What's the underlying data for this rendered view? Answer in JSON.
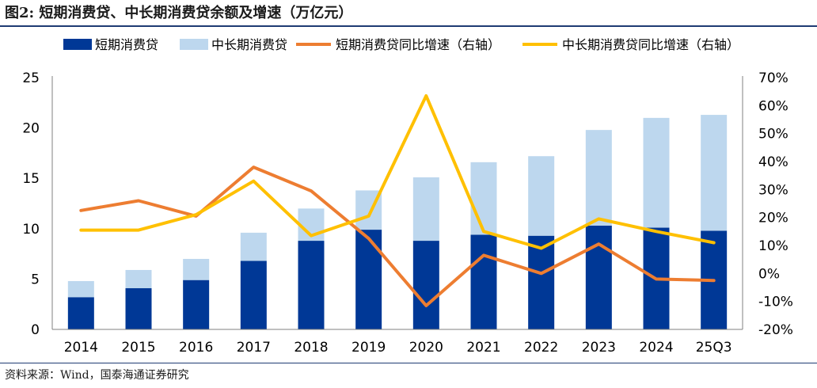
{
  "title": "图2:  短期消费贷、中长期消费贷余额及增速（万亿元）",
  "source": "资料来源：Wind，国泰海通证券研究",
  "colors": {
    "short_bar": "#003896",
    "long_bar": "#bdd7ee",
    "short_growth": "#ed7d31",
    "long_growth": "#ffc000",
    "rule": "#1f3b73"
  },
  "chart_data": {
    "type": "bar",
    "stacked": true,
    "categories": [
      "2014",
      "2015",
      "2016",
      "2017",
      "2018",
      "2019",
      "2020",
      "2021",
      "2022",
      "2023",
      "2024",
      "25Q3"
    ],
    "series": [
      {
        "name": "短期消费贷",
        "type": "bar",
        "axis": "left",
        "values": [
          3.2,
          4.1,
          4.9,
          6.8,
          8.8,
          9.9,
          8.8,
          9.4,
          9.3,
          10.3,
          10.1,
          9.8
        ]
      },
      {
        "name": "中长期消费贷",
        "type": "bar",
        "axis": "left",
        "values": [
          1.6,
          1.8,
          2.1,
          2.8,
          3.2,
          3.9,
          6.3,
          7.2,
          7.9,
          9.5,
          10.9,
          11.5
        ]
      },
      {
        "name": "短期消费贷同比增速（右轴）",
        "type": "line",
        "axis": "right",
        "values": [
          22.5,
          26.0,
          20.5,
          38.0,
          29.5,
          12.5,
          -11.5,
          6.5,
          0.0,
          10.5,
          -2.0,
          -2.5
        ]
      },
      {
        "name": "中长期消费贷同比增速（右轴）",
        "type": "line",
        "axis": "right",
        "values": [
          15.5,
          15.5,
          21.0,
          33.0,
          13.5,
          20.5,
          63.5,
          15.0,
          9.0,
          19.5,
          15.0,
          11.0
        ]
      }
    ],
    "y_left": {
      "min": 0,
      "max": 25,
      "ticks": [
        "0",
        "5",
        "10",
        "15",
        "20",
        "25"
      ]
    },
    "y_right": {
      "min": -20,
      "max": 70,
      "ticks": [
        "-20%",
        "-10%",
        "0%",
        "10%",
        "20%",
        "30%",
        "40%",
        "50%",
        "60%",
        "70%"
      ]
    },
    "legend": "top",
    "grid": false
  }
}
